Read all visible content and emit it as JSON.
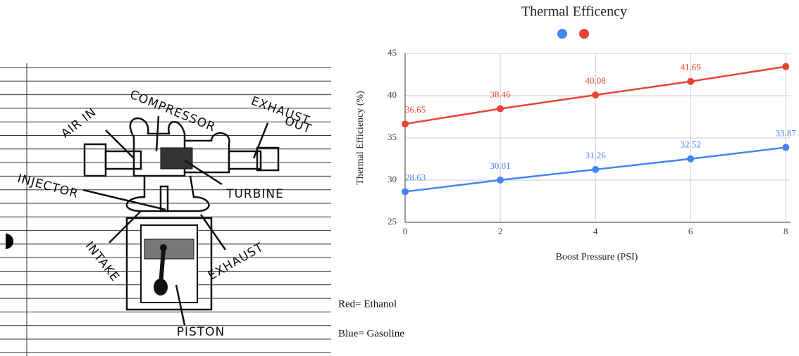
{
  "chart_data": {
    "type": "line",
    "title": "Thermal Efficency",
    "x_label": "Boost Pressure (PSI)",
    "y_label": "Thermal Efficiency (%)",
    "x": [
      0,
      2,
      4,
      6,
      8
    ],
    "series": [
      {
        "color": "#4285f4",
        "values": [
          28.63,
          30.01,
          31.26,
          32.52,
          33.87
        ],
        "value_labels": [
          "28.63",
          "30.01",
          "31.26",
          "32.52",
          "33.87"
        ]
      },
      {
        "color": "#ea4335",
        "values": [
          36.65,
          38.46,
          40.08,
          41.69,
          43.45
        ],
        "value_labels": [
          "36.65",
          "38.46",
          "40.08",
          "41.69",
          null
        ]
      }
    ],
    "xlim": [
      0,
      8.1
    ],
    "ylim": [
      25,
      45
    ],
    "xticks": [
      0,
      2,
      4,
      6,
      8
    ],
    "yticks": [
      25,
      30,
      35,
      40,
      45
    ],
    "grid": true
  },
  "sketch": {
    "labels": [
      "AIR IN",
      "COMPRESSOR",
      "EXHAUST",
      "OUT",
      "TURBINE",
      "INJECTOR",
      "INTAKE",
      "EXHAUST",
      "PISTON"
    ]
  },
  "notes": [
    "Red= Ethanol",
    "Blue= Gasoline"
  ]
}
